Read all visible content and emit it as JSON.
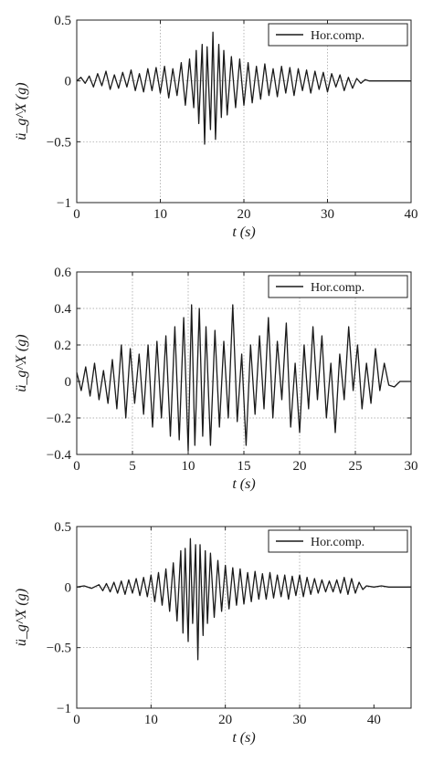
{
  "chart_data": [
    {
      "type": "line",
      "title": "",
      "xlabel": "t (s)",
      "ylabel": "ü_g^X (g)",
      "xlim": [
        0,
        40
      ],
      "ylim": [
        -1,
        0.5
      ],
      "xticks": [
        0,
        10,
        20,
        30,
        40
      ],
      "yticks": [
        -1,
        -0.5,
        0,
        0.5
      ],
      "xtick_labels": [
        "0",
        "10",
        "20",
        "30",
        "40"
      ],
      "ytick_labels": [
        "−1",
        "−0.5",
        "0",
        "0.5"
      ],
      "grid": true,
      "legend_position": "top-right",
      "series": [
        {
          "name": "Hor.comp.",
          "color": "#1a1a1a",
          "x": [
            0,
            0.5,
            1,
            1.5,
            2,
            2.5,
            3,
            3.5,
            4,
            4.5,
            5,
            5.5,
            6,
            6.5,
            7,
            7.5,
            8,
            8.5,
            9,
            9.5,
            10,
            10.5,
            11,
            11.5,
            12,
            12.5,
            13,
            13.5,
            14,
            14.3,
            14.6,
            15,
            15.3,
            15.6,
            16,
            16.3,
            16.6,
            17,
            17.3,
            17.6,
            18,
            18.5,
            19,
            19.5,
            20,
            20.5,
            21,
            21.5,
            22,
            22.5,
            23,
            23.5,
            24,
            24.5,
            25,
            25.5,
            26,
            26.5,
            27,
            27.5,
            28,
            28.5,
            29,
            29.5,
            30,
            30.5,
            31,
            31.5,
            32,
            32.5,
            33,
            33.5,
            34,
            34.5,
            35,
            35.5,
            36,
            37,
            38,
            39,
            40
          ],
          "y": [
            0,
            0.03,
            -0.02,
            0.04,
            -0.05,
            0.06,
            -0.04,
            0.08,
            -0.07,
            0.05,
            -0.06,
            0.07,
            -0.05,
            0.09,
            -0.08,
            0.06,
            -0.09,
            0.1,
            -0.08,
            0.11,
            -0.1,
            0.12,
            -0.14,
            0.1,
            -0.12,
            0.15,
            -0.2,
            0.18,
            -0.22,
            0.25,
            -0.35,
            0.3,
            -0.52,
            0.28,
            -0.4,
            0.4,
            -0.48,
            0.3,
            -0.3,
            0.25,
            -0.28,
            0.2,
            -0.22,
            0.18,
            -0.2,
            0.15,
            -0.18,
            0.12,
            -0.15,
            0.14,
            -0.12,
            0.1,
            -0.13,
            0.12,
            -0.1,
            0.11,
            -0.12,
            0.1,
            -0.08,
            0.09,
            -0.1,
            0.08,
            -0.07,
            0.07,
            -0.09,
            0.06,
            -0.05,
            0.05,
            -0.08,
            0.03,
            -0.06,
            0.02,
            -0.02,
            0.01,
            0,
            0,
            0,
            0,
            0,
            0,
            0
          ]
        }
      ]
    },
    {
      "type": "line",
      "title": "",
      "xlabel": "t (s)",
      "ylabel": "ü_g^X (g)",
      "xlim": [
        0,
        30
      ],
      "ylim": [
        -0.4,
        0.6
      ],
      "xticks": [
        0,
        5,
        10,
        15,
        20,
        25,
        30
      ],
      "yticks": [
        -0.4,
        -0.2,
        0,
        0.2,
        0.4,
        0.6
      ],
      "xtick_labels": [
        "0",
        "5",
        "10",
        "15",
        "20",
        "25",
        "30"
      ],
      "ytick_labels": [
        "−0.4",
        "−0.2",
        "0",
        "0.2",
        "0.4",
        "0.6"
      ],
      "grid": true,
      "legend_position": "top-right",
      "series": [
        {
          "name": "Hor.comp.",
          "color": "#1a1a1a",
          "x": [
            0,
            0.4,
            0.8,
            1.2,
            1.6,
            2,
            2.4,
            2.8,
            3.2,
            3.6,
            4,
            4.4,
            4.8,
            5.2,
            5.6,
            6,
            6.4,
            6.8,
            7.2,
            7.6,
            8,
            8.4,
            8.8,
            9.2,
            9.6,
            10,
            10.3,
            10.6,
            11,
            11.3,
            11.6,
            12,
            12.4,
            12.8,
            13.2,
            13.6,
            14,
            14.4,
            14.8,
            15.2,
            15.6,
            16,
            16.4,
            16.8,
            17.2,
            17.6,
            18,
            18.4,
            18.8,
            19.2,
            19.6,
            20,
            20.4,
            20.8,
            21.2,
            21.6,
            22,
            22.4,
            22.8,
            23.2,
            23.6,
            24,
            24.4,
            24.8,
            25.2,
            25.6,
            26,
            26.4,
            26.8,
            27.2,
            27.6,
            28,
            28.5,
            29,
            29.5,
            30
          ],
          "y": [
            0.05,
            -0.05,
            0.08,
            -0.08,
            0.1,
            -0.1,
            0.06,
            -0.12,
            0.12,
            -0.15,
            0.2,
            -0.2,
            0.18,
            -0.12,
            0.15,
            -0.18,
            0.2,
            -0.25,
            0.22,
            -0.2,
            0.25,
            -0.3,
            0.3,
            -0.32,
            0.35,
            -0.38,
            0.42,
            -0.35,
            0.4,
            -0.3,
            0.3,
            -0.35,
            0.28,
            -0.25,
            0.22,
            -0.2,
            0.42,
            -0.22,
            0.15,
            -0.35,
            0.2,
            -0.18,
            0.25,
            -0.15,
            0.35,
            -0.2,
            0.22,
            -0.1,
            0.32,
            -0.25,
            0.1,
            -0.28,
            0.2,
            -0.15,
            0.3,
            -0.1,
            0.25,
            -0.2,
            0.1,
            -0.28,
            0.15,
            -0.1,
            0.3,
            -0.05,
            0.2,
            -0.15,
            0.1,
            -0.12,
            0.18,
            -0.05,
            0.1,
            -0.02,
            -0.03,
            0,
            0,
            0
          ]
        }
      ]
    },
    {
      "type": "line",
      "title": "",
      "xlabel": "t (s)",
      "ylabel": "ü_g^X (g)",
      "xlim": [
        0,
        45
      ],
      "ylim": [
        -1,
        0.5
      ],
      "xticks": [
        0,
        10,
        20,
        30,
        40
      ],
      "yticks": [
        -1,
        -0.5,
        0,
        0.5
      ],
      "xtick_labels": [
        "0",
        "10",
        "20",
        "30",
        "40"
      ],
      "ytick_labels": [
        "−1",
        "−0.5",
        "0",
        "0.5"
      ],
      "grid": true,
      "legend_position": "top-right",
      "series": [
        {
          "name": "Hor.comp.",
          "color": "#1a1a1a",
          "x": [
            0,
            1,
            2,
            3,
            3.5,
            4,
            4.5,
            5,
            5.5,
            6,
            6.5,
            7,
            7.5,
            8,
            8.5,
            9,
            9.5,
            10,
            10.5,
            11,
            11.5,
            12,
            12.5,
            13,
            13.5,
            14,
            14.3,
            14.6,
            15,
            15.3,
            15.6,
            16,
            16.3,
            16.6,
            17,
            17.3,
            17.6,
            18,
            18.5,
            19,
            19.5,
            20,
            20.5,
            21,
            21.5,
            22,
            22.5,
            23,
            23.5,
            24,
            24.5,
            25,
            25.5,
            26,
            26.5,
            27,
            27.5,
            28,
            28.5,
            29,
            29.5,
            30,
            30.5,
            31,
            31.5,
            32,
            32.5,
            33,
            33.5,
            34,
            34.5,
            35,
            35.5,
            36,
            36.5,
            37,
            37.5,
            38,
            38.5,
            39,
            40,
            41,
            42,
            43,
            44,
            45
          ],
          "y": [
            0,
            0.01,
            -0.01,
            0.02,
            -0.03,
            0.03,
            -0.04,
            0.04,
            -0.05,
            0.05,
            -0.06,
            0.06,
            -0.05,
            0.07,
            -0.07,
            0.08,
            -0.08,
            0.1,
            -0.12,
            0.12,
            -0.15,
            0.15,
            -0.2,
            0.2,
            -0.28,
            0.3,
            -0.38,
            0.32,
            -0.45,
            0.4,
            -0.3,
            0.35,
            -0.6,
            0.35,
            -0.4,
            0.3,
            -0.3,
            0.28,
            -0.25,
            0.22,
            -0.2,
            0.18,
            -0.18,
            0.16,
            -0.15,
            0.15,
            -0.14,
            0.12,
            -0.12,
            0.13,
            -0.1,
            0.11,
            -0.1,
            0.12,
            -0.09,
            0.1,
            -0.08,
            0.1,
            -0.1,
            0.09,
            -0.07,
            0.1,
            -0.08,
            0.08,
            -0.06,
            0.07,
            -0.05,
            0.06,
            -0.04,
            0.05,
            -0.04,
            0.06,
            -0.05,
            0.08,
            -0.06,
            0.07,
            -0.05,
            0.04,
            -0.02,
            0.01,
            0,
            0.01,
            0,
            0,
            0,
            0
          ]
        }
      ]
    }
  ]
}
